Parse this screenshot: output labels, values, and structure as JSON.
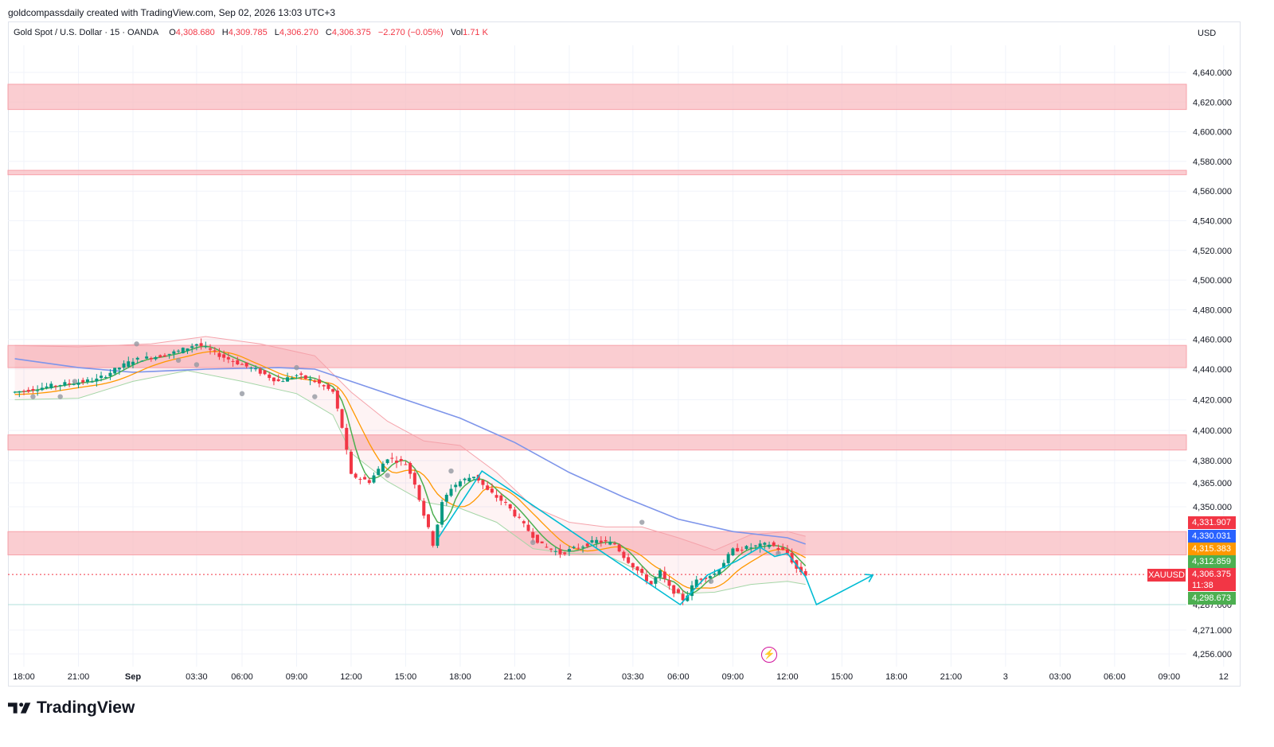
{
  "attribution": "goldcompassdaily created with TradingView.com, Sep 02, 2026 13:03 UTC+3",
  "legend": {
    "symbol": "Gold Spot / U.S. Dollar · 15 · OANDA",
    "open_label": "O",
    "open": "4,308.680",
    "high_label": "H",
    "high": "4,309.785",
    "low_label": "L",
    "low": "4,306.270",
    "close_label": "C",
    "close": "4,306.375",
    "change": "−2.270 (−0.05%)",
    "vol_label": "Vol",
    "vol": "1.71 K"
  },
  "currency": "USD",
  "brand": "TradingView",
  "price_tags": [
    {
      "value": "4,331.907",
      "color": "#f23645"
    },
    {
      "value": "4,330.031",
      "color": "#2962ff"
    },
    {
      "value": "4,315.383",
      "color": "#ff9800"
    },
    {
      "value": "4,312.859",
      "color": "#4caf50"
    },
    {
      "value": "4,306.375",
      "color": "#f23645"
    },
    {
      "value": "4,298.673",
      "color": "#4caf50"
    }
  ],
  "symbol_tag": "XAUUSD",
  "countdown": "11:38",
  "colors": {
    "up": "#089981",
    "down": "#f23645",
    "zone": "#f8bcc2",
    "ma_slow": "#7e95ea",
    "ma_mid": "#ff9800",
    "ma_fast": "#4caf50",
    "projection": "#00bcd4"
  },
  "icons": {
    "flash": "lightning-bolt-icon"
  },
  "chart_data": {
    "type": "candlestick",
    "title": "Gold Spot / U.S. Dollar · 15 · OANDA",
    "y_axis": {
      "ticks": [
        {
          "v": 4640,
          "label": "4,640.000"
        },
        {
          "v": 4620,
          "label": "4,620.000"
        },
        {
          "v": 4600,
          "label": "4,600.000"
        },
        {
          "v": 4580,
          "label": "4,580.000"
        },
        {
          "v": 4560,
          "label": "4,560.000"
        },
        {
          "v": 4540,
          "label": "4,540.000"
        },
        {
          "v": 4520,
          "label": "4,520.000"
        },
        {
          "v": 4500,
          "label": "4,500.000"
        },
        {
          "v": 4480,
          "label": "4,480.000"
        },
        {
          "v": 4460,
          "label": "4,460.000"
        },
        {
          "v": 4440,
          "label": "4,440.000"
        },
        {
          "v": 4420,
          "label": "4,420.000"
        },
        {
          "v": 4400,
          "label": "4,400.000"
        },
        {
          "v": 4380,
          "label": "4,380.000"
        },
        {
          "v": 4365,
          "label": "4,365.000"
        },
        {
          "v": 4350,
          "label": "4,350.000"
        },
        {
          "v": 4287,
          "label": "4,287.000"
        },
        {
          "v": 4271,
          "label": "4,271.000"
        },
        {
          "v": 4256,
          "label": "4,256.000"
        }
      ]
    },
    "x_axis": {
      "ticks": [
        {
          "h": -6,
          "label": "18:00"
        },
        {
          "h": -3,
          "label": "21:00"
        },
        {
          "h": 0,
          "label": "Sep",
          "bold": true
        },
        {
          "h": 3.5,
          "label": "03:30"
        },
        {
          "h": 6,
          "label": "06:00"
        },
        {
          "h": 9,
          "label": "09:00"
        },
        {
          "h": 12,
          "label": "12:00"
        },
        {
          "h": 15,
          "label": "15:00"
        },
        {
          "h": 18,
          "label": "18:00"
        },
        {
          "h": 21,
          "label": "21:00"
        },
        {
          "h": 24,
          "label": "2"
        },
        {
          "h": 27.5,
          "label": "03:30"
        },
        {
          "h": 30,
          "label": "06:00"
        },
        {
          "h": 33,
          "label": "09:00"
        },
        {
          "h": 36,
          "label": "12:00"
        },
        {
          "h": 39,
          "label": "15:00"
        },
        {
          "h": 42,
          "label": "18:00"
        },
        {
          "h": 45,
          "label": "21:00"
        },
        {
          "h": 48,
          "label": "3"
        },
        {
          "h": 51,
          "label": "03:00"
        },
        {
          "h": 54,
          "label": "06:00"
        },
        {
          "h": 57,
          "label": "09:00"
        },
        {
          "h": 60,
          "label": "12"
        }
      ]
    },
    "zones": [
      [
        4615,
        4632
      ],
      [
        4571,
        4574
      ],
      [
        4441,
        4456
      ],
      [
        4387,
        4397
      ],
      [
        4319,
        4334
      ]
    ],
    "support_line": 4287,
    "last_price": 4306.375,
    "path_keys": [
      [
        -6.5,
        4425
      ],
      [
        -4,
        4430
      ],
      [
        -2,
        4433
      ],
      [
        0,
        4446
      ],
      [
        1.5,
        4449
      ],
      [
        2.5,
        4452
      ],
      [
        3.5,
        4457
      ],
      [
        5,
        4448
      ],
      [
        6,
        4443
      ],
      [
        7,
        4438
      ],
      [
        8,
        4432
      ],
      [
        9,
        4436
      ],
      [
        10,
        4432
      ],
      [
        11,
        4425
      ],
      [
        11.5,
        4402
      ],
      [
        12,
        4370
      ],
      [
        13,
        4366
      ],
      [
        14,
        4382
      ],
      [
        15,
        4378
      ],
      [
        15.5,
        4365
      ],
      [
        16,
        4345
      ],
      [
        16.5,
        4326
      ],
      [
        17,
        4352
      ],
      [
        17.5,
        4362
      ],
      [
        18,
        4366
      ],
      [
        18.8,
        4370
      ],
      [
        19.5,
        4360
      ],
      [
        20.5,
        4352
      ],
      [
        21.5,
        4338
      ],
      [
        22.5,
        4325
      ],
      [
        23.5,
        4320
      ],
      [
        24.5,
        4324
      ],
      [
        25.5,
        4328
      ],
      [
        26.5,
        4326
      ],
      [
        27,
        4318
      ],
      [
        27.5,
        4312
      ],
      [
        28.5,
        4300
      ],
      [
        29,
        4308
      ],
      [
        29.5,
        4298
      ],
      [
        30.3,
        4290
      ],
      [
        31,
        4303
      ],
      [
        32,
        4307
      ],
      [
        33,
        4322
      ],
      [
        34,
        4324
      ],
      [
        35,
        4326
      ],
      [
        36,
        4320
      ],
      [
        36.5,
        4310
      ],
      [
        37,
        4306.4
      ]
    ],
    "ma_slow": [
      [
        -6.5,
        4447
      ],
      [
        -3,
        4441
      ],
      [
        0,
        4438
      ],
      [
        4,
        4440
      ],
      [
        8,
        4441
      ],
      [
        10,
        4440
      ],
      [
        12,
        4432
      ],
      [
        15,
        4420
      ],
      [
        18,
        4408
      ],
      [
        21,
        4392
      ],
      [
        24,
        4372
      ],
      [
        27,
        4356
      ],
      [
        30,
        4342
      ],
      [
        33,
        4334
      ],
      [
        36,
        4330
      ],
      [
        37,
        4326
      ]
    ],
    "bb_upper": [
      [
        -6.5,
        4456
      ],
      [
        -3,
        4455
      ],
      [
        1,
        4457
      ],
      [
        4,
        4462
      ],
      [
        7,
        4457
      ],
      [
        10,
        4449
      ],
      [
        12,
        4425
      ],
      [
        14,
        4406
      ],
      [
        16,
        4393
      ],
      [
        18,
        4390
      ],
      [
        20,
        4372
      ],
      [
        22,
        4350
      ],
      [
        24,
        4340
      ],
      [
        26,
        4337
      ],
      [
        28,
        4337
      ],
      [
        30,
        4330
      ],
      [
        32,
        4322
      ],
      [
        34,
        4332
      ],
      [
        36,
        4334
      ],
      [
        37,
        4331
      ]
    ],
    "bb_lower": [
      [
        -6.5,
        4420
      ],
      [
        -3,
        4421
      ],
      [
        0,
        4432
      ],
      [
        3,
        4439
      ],
      [
        6,
        4432
      ],
      [
        9,
        4424
      ],
      [
        11,
        4410
      ],
      [
        12,
        4385
      ],
      [
        14,
        4366
      ],
      [
        16,
        4353
      ],
      [
        18,
        4349
      ],
      [
        20,
        4340
      ],
      [
        22,
        4323
      ],
      [
        24,
        4320
      ],
      [
        26,
        4319
      ],
      [
        28,
        4308
      ],
      [
        30,
        4294
      ],
      [
        32,
        4295
      ],
      [
        34,
        4300
      ],
      [
        36,
        4302
      ],
      [
        37,
        4300
      ]
    ],
    "pivots": [
      [
        -5.5,
        4422
      ],
      [
        -4,
        4422
      ],
      [
        -3.2,
        4432
      ],
      [
        0.2,
        4457
      ],
      [
        2.5,
        4446
      ],
      [
        3.5,
        4443
      ],
      [
        6,
        4424
      ],
      [
        9,
        4441
      ],
      [
        10,
        4422
      ],
      [
        14,
        4370
      ],
      [
        17.5,
        4373
      ],
      [
        22,
        4327
      ],
      [
        28,
        4340
      ],
      [
        31.8,
        4302
      ],
      [
        35.5,
        4320
      ]
    ],
    "projection": [
      [
        16.8,
        4330
      ],
      [
        19.2,
        4373
      ],
      [
        30.1,
        4287
      ],
      [
        31.6,
        4306
      ],
      [
        33.2,
        4315
      ],
      [
        34.5,
        4324
      ],
      [
        35.3,
        4318
      ],
      [
        36,
        4320
      ],
      [
        37,
        4305
      ],
      [
        37.6,
        4287
      ],
      [
        40.7,
        4306
      ]
    ]
  }
}
